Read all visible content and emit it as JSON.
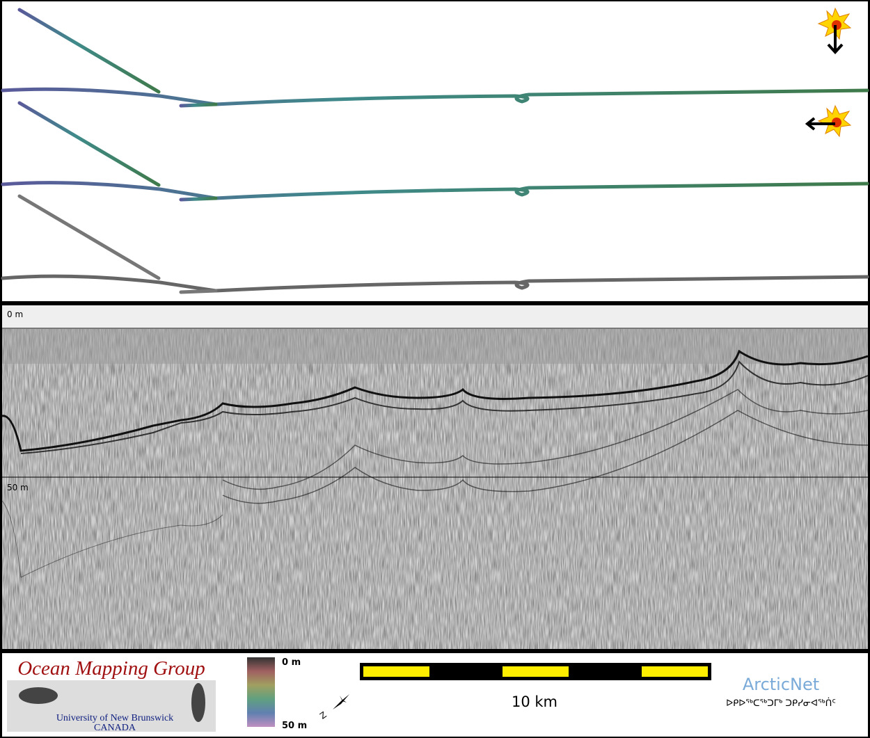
{
  "profile": {
    "depth_top": "0 m",
    "depth_mid": "50 m"
  },
  "legend": {
    "org_title": "Ocean Mapping Group",
    "org_university": "University of New Brunswick",
    "org_country": "CANADA",
    "colorbar_top": "0 m",
    "colorbar_bottom": "50 m",
    "scale_label": "10 km",
    "partner": "ArcticNet",
    "partner_syllabics": "ᐅᑭᐅᖅᑕᖅᑐᒥᒃ ᑐᑭᓯᓂᐊᖅᑏᑦ"
  }
}
